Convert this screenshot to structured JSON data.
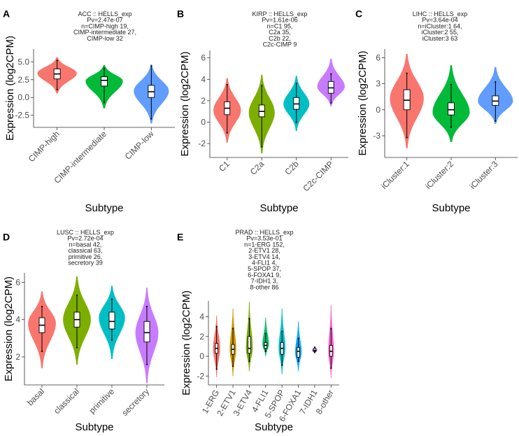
{
  "figure": {
    "background": "#ffffff",
    "box_fill": "#ffffff",
    "box_stroke": "#000000"
  },
  "chart_data": [
    {
      "panel": "A",
      "type": "violin",
      "title_lines": [
        "ACC :: HELLS_exp",
        "Pv=2.47e-07",
        "n=CIMP-high 19,",
        "CIMP-intermediate 27,",
        "CIMP-low 32"
      ],
      "xlabel": "Subtype",
      "ylabel": "Expression (log2CPM)",
      "ylim": [
        -4.2,
        6.8
      ],
      "yticks": [
        -2.5,
        0.0,
        2.5,
        5.0
      ],
      "ytick_labels": [
        "-2.5",
        "0.0",
        "2.5",
        "5.0"
      ],
      "categories": [
        "CIMP-high",
        "CIMP-intermediate",
        "CIMP-low"
      ],
      "colors": [
        "#F8766D",
        "#00BA38",
        "#619CFF"
      ],
      "groups": [
        {
          "min": 1.1,
          "q1": 2.6,
          "median": 3.3,
          "q3": 4.0,
          "max": 5.2,
          "lo": 0.6,
          "hi": 5.6,
          "mode": 3.4,
          "halfwidth": 0.9
        },
        {
          "min": -0.7,
          "q1": 1.6,
          "median": 2.4,
          "q3": 2.9,
          "max": 4.1,
          "lo": -1.5,
          "hi": 4.5,
          "mode": 2.3,
          "halfwidth": 0.85
        },
        {
          "min": -3.0,
          "q1": 0.0,
          "median": 0.8,
          "q3": 1.7,
          "max": 4.4,
          "lo": -3.6,
          "hi": 4.6,
          "mode": 0.9,
          "halfwidth": 0.8
        }
      ]
    },
    {
      "panel": "B",
      "type": "violin",
      "title_lines": [
        "KIRP :: HELLS_exp",
        "Pv=1.61e-06",
        "n=C1 95,",
        "C2a 35,",
        "C2b 22,",
        "C2c-CIMP 9"
      ],
      "xlabel": "Subtype",
      "ylabel": "Expression (log2CPM)",
      "ylim": [
        -3.3,
        6.7
      ],
      "yticks": [
        -2,
        0,
        2,
        4,
        6
      ],
      "ytick_labels": [
        "-2",
        "0",
        "2",
        "4",
        "6"
      ],
      "categories": [
        "C1",
        "C2a",
        "C2b",
        "C2c-CIMP"
      ],
      "colors": [
        "#F8766D",
        "#7CAE00",
        "#00BFC4",
        "#C77CFF"
      ],
      "groups": [
        {
          "min": -1.0,
          "q1": 0.7,
          "median": 1.3,
          "q3": 1.9,
          "max": 3.5,
          "lo": -1.9,
          "hi": 4.1,
          "mode": 1.1,
          "halfwidth": 0.85
        },
        {
          "min": -2.3,
          "q1": 0.5,
          "median": 1.0,
          "q3": 1.6,
          "max": 3.4,
          "lo": -2.9,
          "hi": 4.4,
          "mode": 0.9,
          "halfwidth": 0.8
        },
        {
          "min": 0.0,
          "q1": 1.2,
          "median": 1.7,
          "q3": 2.3,
          "max": 3.6,
          "lo": -0.8,
          "hi": 4.3,
          "mode": 1.7,
          "halfwidth": 0.8
        },
        {
          "min": 1.8,
          "q1": 2.7,
          "median": 3.2,
          "q3": 3.8,
          "max": 4.5,
          "lo": 1.5,
          "hi": 5.9,
          "mode": 3.3,
          "halfwidth": 0.85
        }
      ]
    },
    {
      "panel": "C",
      "type": "violin",
      "title_lines": [
        "LIHC :: HELLS_exp",
        "Pv=3.64e-04",
        "n=iCluster:1 64,",
        "iCluster:2 55,",
        "iCluster:3 63"
      ],
      "xlabel": "Subtype",
      "ylabel": "Expression (log2CPM)",
      "ylim": [
        -5.5,
        7.0
      ],
      "yticks": [
        -3,
        0,
        3,
        6
      ],
      "ytick_labels": [
        "-3",
        "0",
        "3",
        "6"
      ],
      "categories": [
        "iCluster:1",
        "iCluster:2",
        "iCluster:3"
      ],
      "colors": [
        "#F8766D",
        "#00BA38",
        "#619CFF"
      ],
      "groups": [
        {
          "min": -3.2,
          "q1": 0.0,
          "median": 1.1,
          "q3": 2.3,
          "max": 4.2,
          "lo": -4.4,
          "hi": 6.4,
          "mode": 1.3,
          "halfwidth": 0.82
        },
        {
          "min": -2.0,
          "q1": -0.6,
          "median": 0.0,
          "q3": 0.8,
          "max": 2.9,
          "lo": -3.7,
          "hi": 5.1,
          "mode": -0.3,
          "halfwidth": 0.9
        },
        {
          "min": -1.3,
          "q1": 0.5,
          "median": 1.0,
          "q3": 1.6,
          "max": 3.2,
          "lo": -1.6,
          "hi": 4.9,
          "mode": 1.0,
          "halfwidth": 0.85
        }
      ]
    },
    {
      "panel": "D",
      "type": "violin",
      "title_lines": [
        "LUSC :: HELLS_exp",
        "Pv=2.72e-04",
        "n=basal 42,",
        "classical 63,",
        "primitive 26,",
        "secretory 39"
      ],
      "xlabel": "Subtype",
      "ylabel": "Expression (log2CPM)",
      "ylim": [
        0.5,
        6.5
      ],
      "yticks": [
        2,
        4,
        6
      ],
      "ytick_labels": [
        "2",
        "4",
        "6"
      ],
      "categories": [
        "basal",
        "classical",
        "primitive",
        "secretory"
      ],
      "colors": [
        "#F8766D",
        "#7CAE00",
        "#00BFC4",
        "#C77CFF"
      ],
      "groups": [
        {
          "min": 2.3,
          "q1": 3.3,
          "median": 3.7,
          "q3": 4.1,
          "max": 4.7,
          "lo": 1.4,
          "hi": 5.5,
          "mode": 3.8,
          "halfwidth": 0.85
        },
        {
          "min": 2.5,
          "q1": 3.6,
          "median": 4.0,
          "q3": 4.4,
          "max": 5.3,
          "lo": 1.6,
          "hi": 6.3,
          "mode": 4.0,
          "halfwidth": 0.85
        },
        {
          "min": 2.9,
          "q1": 3.5,
          "median": 3.9,
          "q3": 4.4,
          "max": 5.1,
          "lo": 1.9,
          "hi": 5.8,
          "mode": 4.1,
          "halfwidth": 0.8
        },
        {
          "min": 1.6,
          "q1": 2.8,
          "median": 3.3,
          "q3": 3.9,
          "max": 4.7,
          "lo": 0.6,
          "hi": 5.7,
          "mode": 3.3,
          "halfwidth": 0.7
        }
      ]
    },
    {
      "panel": "E",
      "type": "violin",
      "title_lines": [
        "PRAD :: HELLS_exp",
        "Pv=3.53e-01",
        "n=1-ERG 152,",
        "2-ETV1 28,",
        "3-ETV4 14,",
        "4-FLI1 4,",
        "5-SPOP 37,",
        "6-FOXA1 9,",
        "7-IDH1 3,",
        "8-other 86"
      ],
      "xlabel": "Subtype",
      "ylabel": "Expression (log2CPM)",
      "ylim": [
        -2.9,
        5.6
      ],
      "yticks": [
        -2,
        0,
        2,
        4
      ],
      "ytick_labels": [
        "-2",
        "0",
        "2",
        "4"
      ],
      "categories": [
        "1-ERG",
        "2-ETV1",
        "3-ETV4",
        "4-FLI1",
        "5-SPOP",
        "6-FOXA1",
        "7-IDH1",
        "8-other"
      ],
      "colors": [
        "#F8766D",
        "#CD9600",
        "#7CAE00",
        "#00BE67",
        "#00BFC4",
        "#00A9FF",
        "#C77CFF",
        "#FF61CC"
      ],
      "groups": [
        {
          "min": -1.3,
          "q1": 0.3,
          "median": 0.8,
          "q3": 1.3,
          "max": 3.0,
          "lo": -2.1,
          "hi": 4.1,
          "mode": 0.8,
          "halfwidth": 0.45
        },
        {
          "min": -1.0,
          "q1": 0.2,
          "median": 0.7,
          "q3": 1.2,
          "max": 2.8,
          "lo": -2.0,
          "hi": 4.8,
          "mode": 0.7,
          "halfwidth": 0.4
        },
        {
          "min": -0.5,
          "q1": 0.3,
          "median": 0.8,
          "q3": 2.0,
          "max": 3.8,
          "lo": -1.5,
          "hi": 5.5,
          "mode": 0.8,
          "halfwidth": 0.42
        },
        {
          "min": 0.5,
          "q1": 0.8,
          "median": 1.1,
          "q3": 1.4,
          "max": 2.3,
          "lo": 0.0,
          "hi": 3.9,
          "mode": 1.2,
          "halfwidth": 0.4
        },
        {
          "min": -0.9,
          "q1": 0.2,
          "median": 0.8,
          "q3": 1.4,
          "max": 2.5,
          "lo": -1.8,
          "hi": 4.8,
          "mode": 0.8,
          "halfwidth": 0.42
        },
        {
          "min": -0.5,
          "q1": -0.1,
          "median": 0.5,
          "q3": 0.9,
          "max": 1.8,
          "lo": -1.5,
          "hi": 3.5,
          "mode": 0.4,
          "halfwidth": 0.4
        },
        {
          "min": 0.4,
          "q1": 0.5,
          "median": 0.6,
          "q3": 0.8,
          "max": 0.9,
          "lo": 0.3,
          "hi": 1.0,
          "mode": 0.6,
          "halfwidth": 0.35
        },
        {
          "min": -1.2,
          "q1": 0.0,
          "median": 0.5,
          "q3": 1.1,
          "max": 2.8,
          "lo": -2.2,
          "hi": 5.2,
          "mode": 0.5,
          "halfwidth": 0.35
        }
      ]
    }
  ]
}
